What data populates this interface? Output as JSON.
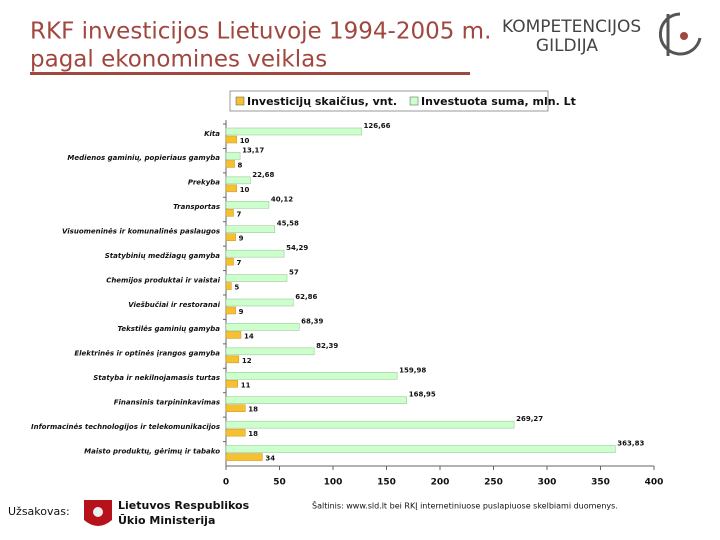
{
  "slide": {
    "title_lines": [
      "RKF investicijos Lietuvoje 1994-2005 m.",
      "pagal ekonomines veiklas"
    ],
    "logo_lines": [
      "KOMPETENCIJOS",
      "GILDIJA"
    ],
    "client_label": "Užsakovas:",
    "client_lines": [
      "Lietuvos Respublikos",
      "Ūkio Ministerija"
    ],
    "source": "Šaltinis: www.sld.lt bei RKĮ internetiniuose puslapiuose skelbiami duomenys."
  },
  "chart_data": {
    "type": "hbar",
    "categories": [
      "Kita",
      "Medienos gaminių, popieriaus gamyba",
      "Prekyba",
      "Transportas",
      "Visuomeninės ir komunalinės paslaugos",
      "Statybinių medžiagų gamyba",
      "Chemijos produktai ir vaistai",
      "Viešbučiai ir restoranai",
      "Tekstilės gaminių gamyba",
      "Elektrinės ir optinės įrangos gamyba",
      "Statyba ir nekilnojamasis turtas",
      "Finansinis tarpininkavimas",
      "Informacinės technologijos ir telekomunikacijos",
      "Maisto produktų, gėrimų ir tabako"
    ],
    "series": [
      {
        "name": "Investicijų skaičius, vnt.",
        "color": "#f6c131",
        "values": [
          10,
          8,
          10,
          7,
          9,
          7,
          5,
          9,
          14,
          12,
          11,
          18,
          18,
          34
        ]
      },
      {
        "name": "Investuota suma, mln. Lt",
        "color": "#ccffcc",
        "values": [
          126.66,
          13.17,
          22.68,
          40.12,
          45.58,
          54.29,
          57,
          62.86,
          68.39,
          82.39,
          159.98,
          168.95,
          269.27,
          363.83
        ],
        "value_labels": [
          "126,66",
          "13,17",
          "22,68",
          "40,12",
          "45,58",
          "54,29",
          "57",
          "62,86",
          "68,39",
          "82,39",
          "159,98",
          "168,95",
          "269,27",
          "363,83"
        ]
      }
    ],
    "xlim": [
      0,
      400
    ],
    "xticks": [
      0,
      50,
      100,
      150,
      200,
      250,
      300,
      350,
      400
    ],
    "legend": "top"
  }
}
